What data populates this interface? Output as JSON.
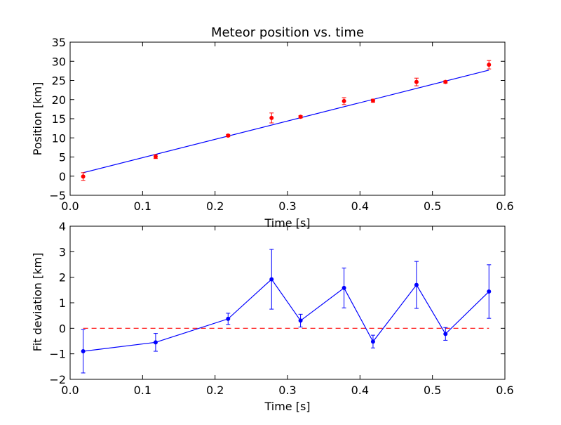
{
  "chart_data": [
    {
      "type": "scatter",
      "title": "Meteor position vs. time",
      "xlabel": "Time [s]",
      "ylabel": "Position [km]",
      "xlim": [
        0.0,
        0.6
      ],
      "ylim": [
        -5,
        35
      ],
      "xticks": [
        "0.0",
        "0.1",
        "0.2",
        "0.3",
        "0.4",
        "0.5",
        "0.6"
      ],
      "yticks": [
        "−5",
        "0",
        "5",
        "10",
        "15",
        "20",
        "25",
        "30",
        "35"
      ],
      "colors": {
        "points": "#ff0000",
        "fit": "#0000ff"
      },
      "grid": false,
      "series": [
        {
          "kind": "points_with_errorbars",
          "x": [
            0.018,
            0.118,
            0.218,
            0.278,
            0.318,
            0.378,
            0.418,
            0.478,
            0.518,
            0.578
          ],
          "y": [
            -0.1,
            5.1,
            10.6,
            15.2,
            15.5,
            19.6,
            19.7,
            24.6,
            24.6,
            29.1
          ],
          "yerr": [
            1.0,
            0.5,
            0.3,
            1.3,
            0.3,
            0.9,
            0.4,
            1.0,
            0.3,
            1.1
          ]
        },
        {
          "kind": "fit_line",
          "x": [
            0.018,
            0.578
          ],
          "y": [
            0.9,
            27.7
          ]
        }
      ]
    },
    {
      "type": "line",
      "title": "",
      "xlabel": "Time [s]",
      "ylabel": "Fit deviation [km]",
      "xlim": [
        0.0,
        0.6
      ],
      "ylim": [
        -2,
        4
      ],
      "xticks": [
        "0.0",
        "0.1",
        "0.2",
        "0.3",
        "0.4",
        "0.5",
        "0.6"
      ],
      "yticks": [
        "−2",
        "−1",
        "0",
        "1",
        "2",
        "3",
        "4"
      ],
      "colors": {
        "series": "#0000ff",
        "reference": "#ff0000"
      },
      "grid": false,
      "series": [
        {
          "kind": "line_with_errorbars",
          "x": [
            0.018,
            0.118,
            0.218,
            0.278,
            0.318,
            0.378,
            0.418,
            0.478,
            0.518,
            0.578
          ],
          "y": [
            -0.9,
            -0.55,
            0.37,
            1.92,
            0.3,
            1.58,
            -0.52,
            1.7,
            -0.22,
            1.44
          ],
          "yerr": [
            0.85,
            0.35,
            0.22,
            1.17,
            0.25,
            0.78,
            0.25,
            0.92,
            0.25,
            1.05
          ]
        },
        {
          "kind": "reference_line",
          "style": "dashed",
          "x": [
            0.018,
            0.578
          ],
          "y": [
            0,
            0
          ]
        }
      ]
    }
  ]
}
